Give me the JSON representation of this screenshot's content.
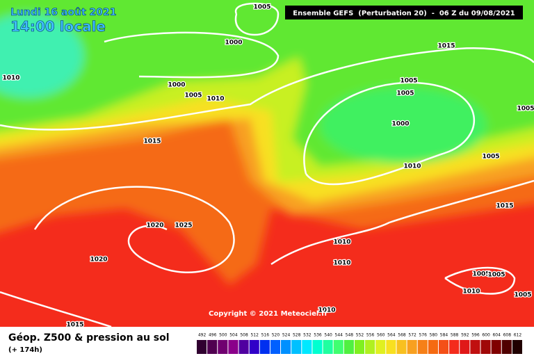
{
  "header": {
    "date": "Lundi 16 août 2021",
    "time": "14:00 locale",
    "run": "Ensemble GEFS  (Perturbation 20)  -  06 Z du 09/08/2021"
  },
  "isobar_labels": [
    "1005",
    "1000",
    "1010",
    "1000",
    "1005",
    "1010",
    "1015",
    "1005",
    "1005",
    "1005",
    "1000",
    "1015",
    "1010",
    "1005",
    "1015",
    "1020",
    "1025",
    "1020",
    "1010",
    "1010",
    "1005",
    "1005",
    "1010",
    "1005",
    "1010",
    "1015"
  ],
  "copyright": "Copyright © 2021 Meteociel.fr",
  "footer": {
    "title": "Géop. Z500 & pression au sol",
    "lead": "(+ 174h)"
  },
  "color_scale": {
    "values": [
      492,
      496,
      500,
      504,
      508,
      512,
      516,
      520,
      524,
      528,
      532,
      536,
      540,
      544,
      548,
      552,
      556,
      560,
      564,
      568,
      572,
      576,
      580,
      584,
      588,
      592,
      596,
      600,
      604,
      608,
      612
    ],
    "colors": [
      "#300030",
      "#500050",
      "#700070",
      "#8a008a",
      "#5000a0",
      "#3000c8",
      "#0030f0",
      "#0060ff",
      "#0090ff",
      "#00c0ff",
      "#00e8ff",
      "#00ffd0",
      "#20ffa0",
      "#40ff70",
      "#50f040",
      "#80f020",
      "#b0f020",
      "#e0f020",
      "#f8e020",
      "#f8c020",
      "#f8a020",
      "#f68018",
      "#f56a12",
      "#f45018",
      "#f42c1c",
      "#e01818",
      "#c01010",
      "#a00808",
      "#800000",
      "#500000",
      "#200000"
    ]
  }
}
